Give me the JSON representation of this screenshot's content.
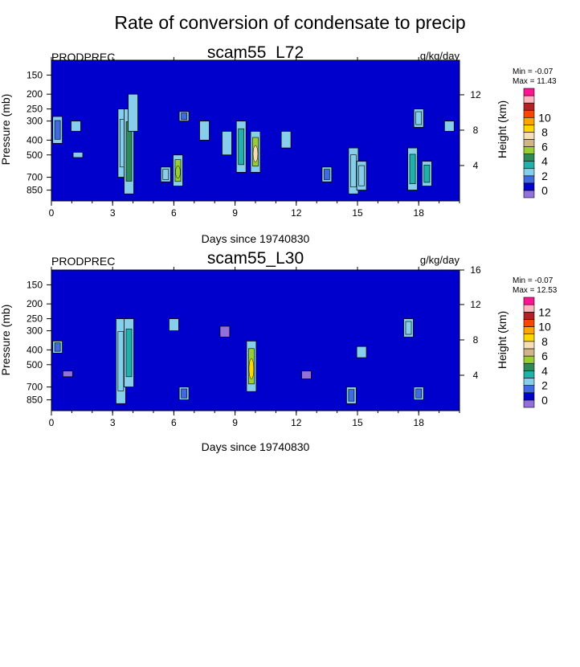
{
  "figure": {
    "title": "Rate of conversion of condensate to precip"
  },
  "chart_data": [
    {
      "type": "heatmap",
      "title": "scam55_L72",
      "left_label": "PRODPREC",
      "units": "g/kg/day",
      "xlabel": "Days since 19740830",
      "ylabel": "Pressure (mb)",
      "ylabel_right": "Height (km)",
      "xlim": [
        0,
        20
      ],
      "x_ticks": [
        0,
        3,
        6,
        9,
        12,
        15,
        18
      ],
      "ylim_pressure": [
        1000,
        100
      ],
      "y_ticks": [
        150,
        200,
        250,
        300,
        400,
        500,
        700,
        850
      ],
      "y_ticks_right": [
        4,
        8,
        12
      ],
      "min_label": "Min =  -0.07",
      "max_label": "Max =  11.43",
      "colorbar": {
        "colors": [
          "#9370DB",
          "#0000CD",
          "#4169E1",
          "#87CEEB",
          "#20B2AA",
          "#2E8B57",
          "#9ACD32",
          "#D2B48C",
          "#F5DEB3",
          "#FFD700",
          "#FFA500",
          "#FF4500",
          "#B22222",
          "#FFB6C1",
          "#FF1493"
        ],
        "label_values": [
          "0",
          "2",
          "4",
          "6",
          "8",
          "10"
        ]
      },
      "background_color": "#0000CD",
      "features": [
        {
          "day": 0.3,
          "p_top": 280,
          "p_bot": 420,
          "level": 2
        },
        {
          "day": 1.2,
          "p_top": 300,
          "p_bot": 350,
          "level": 1
        },
        {
          "day": 1.3,
          "p_top": 480,
          "p_bot": 520,
          "level": 1
        },
        {
          "day": 3.5,
          "p_top": 250,
          "p_bot": 700,
          "level": 3
        },
        {
          "day": 3.8,
          "p_top": 250,
          "p_bot": 900,
          "level": 5
        },
        {
          "day": 4.0,
          "p_top": 200,
          "p_bot": 350,
          "level": 1
        },
        {
          "day": 5.6,
          "p_top": 600,
          "p_bot": 750,
          "level": 3
        },
        {
          "day": 6.2,
          "p_top": 500,
          "p_bot": 800,
          "level": 6
        },
        {
          "day": 6.5,
          "p_top": 260,
          "p_bot": 300,
          "level": 2
        },
        {
          "day": 7.5,
          "p_top": 300,
          "p_bot": 400,
          "level": 1
        },
        {
          "day": 8.6,
          "p_top": 350,
          "p_bot": 500,
          "level": 1
        },
        {
          "day": 9.3,
          "p_top": 300,
          "p_bot": 650,
          "level": 4
        },
        {
          "day": 10.0,
          "p_top": 350,
          "p_bot": 650,
          "level": 8
        },
        {
          "day": 11.5,
          "p_top": 350,
          "p_bot": 450,
          "level": 1
        },
        {
          "day": 13.5,
          "p_top": 600,
          "p_bot": 750,
          "level": 2
        },
        {
          "day": 14.8,
          "p_top": 450,
          "p_bot": 900,
          "level": 3
        },
        {
          "day": 15.2,
          "p_top": 550,
          "p_bot": 850,
          "level": 3
        },
        {
          "day": 17.7,
          "p_top": 450,
          "p_bot": 850,
          "level": 4
        },
        {
          "day": 18.0,
          "p_top": 250,
          "p_bot": 330,
          "level": 3
        },
        {
          "day": 18.4,
          "p_top": 550,
          "p_bot": 800,
          "level": 4
        },
        {
          "day": 19.5,
          "p_top": 300,
          "p_bot": 350,
          "level": 1
        }
      ]
    },
    {
      "type": "heatmap",
      "title": "scam55_L30",
      "left_label": "PRODPREC",
      "units": "g/kg/day",
      "xlabel": "Days since 19740830",
      "ylabel": "Pressure (mb)",
      "ylabel_right": "Height (km)",
      "xlim": [
        0,
        20
      ],
      "x_ticks": [
        0,
        3,
        6,
        9,
        12,
        15,
        18
      ],
      "ylim_pressure": [
        1000,
        100
      ],
      "y_ticks": [
        150,
        200,
        250,
        300,
        400,
        500,
        700,
        850
      ],
      "y_ticks_right": [
        4,
        8,
        12,
        16
      ],
      "min_label": "Min =  -0.07",
      "max_label": "Max =  12.53",
      "colorbar": {
        "colors": [
          "#9370DB",
          "#0000CD",
          "#4169E1",
          "#87CEEB",
          "#20B2AA",
          "#2E8B57",
          "#9ACD32",
          "#D2B48C",
          "#F5DEB3",
          "#FFD700",
          "#FFA500",
          "#FF4500",
          "#B22222",
          "#FFB6C1",
          "#FF1493"
        ],
        "label_values": [
          "0",
          "2",
          "4",
          "6",
          "8",
          "10",
          "12"
        ]
      },
      "background_color": "#0000CD",
      "features": [
        {
          "day": 0.3,
          "p_top": 350,
          "p_bot": 420,
          "level": 2
        },
        {
          "day": 0.8,
          "p_top": 550,
          "p_bot": 600,
          "level": 0
        },
        {
          "day": 3.4,
          "p_top": 250,
          "p_bot": 900,
          "level": 3
        },
        {
          "day": 3.8,
          "p_top": 250,
          "p_bot": 700,
          "level": 4
        },
        {
          "day": 6.0,
          "p_top": 250,
          "p_bot": 300,
          "level": 1
        },
        {
          "day": 6.5,
          "p_top": 700,
          "p_bot": 850,
          "level": 2
        },
        {
          "day": 8.5,
          "p_top": 280,
          "p_bot": 330,
          "level": 0
        },
        {
          "day": 9.8,
          "p_top": 350,
          "p_bot": 750,
          "level": 9
        },
        {
          "day": 12.5,
          "p_top": 550,
          "p_bot": 620,
          "level": 0
        },
        {
          "day": 14.7,
          "p_top": 700,
          "p_bot": 900,
          "level": 2
        },
        {
          "day": 15.2,
          "p_top": 380,
          "p_bot": 450,
          "level": 1
        },
        {
          "day": 17.5,
          "p_top": 250,
          "p_bot": 330,
          "level": 3
        },
        {
          "day": 18.0,
          "p_top": 700,
          "p_bot": 850,
          "level": 2
        }
      ]
    }
  ]
}
